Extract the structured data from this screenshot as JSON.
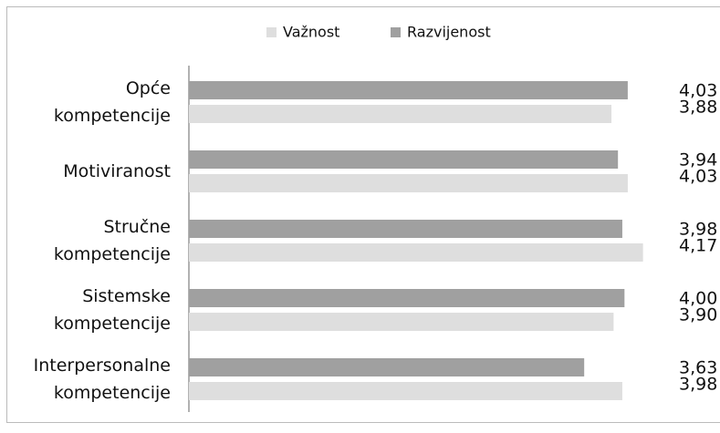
{
  "chart_data": {
    "type": "bar",
    "orientation": "horizontal",
    "categories": [
      "Opće kompetencije",
      "Motiviranost",
      "Stručne kompetencije",
      "Sistemske kompetencije",
      "Interpersonalne kompetencije"
    ],
    "series": [
      {
        "name": "Važnost",
        "color": "#dedede",
        "values": [
          3.88,
          4.03,
          4.17,
          3.9,
          3.98
        ],
        "value_labels": [
          "3,88",
          "4,03",
          "4,17",
          "3,90",
          "3,98"
        ]
      },
      {
        "name": "Razvijenost",
        "color": "#a0a0a0",
        "values": [
          4.03,
          3.94,
          3.98,
          4.0,
          3.63
        ],
        "value_labels": [
          "4,03",
          "3,94",
          "3,98",
          "4,00",
          "3,63"
        ]
      }
    ],
    "xlim": [
      0,
      4.5
    ],
    "legend": "top"
  }
}
